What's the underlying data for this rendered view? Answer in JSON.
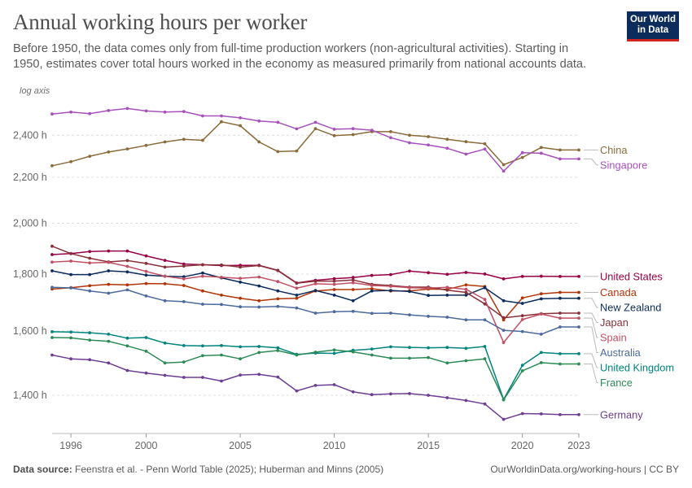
{
  "header": {
    "title": "Annual working hours per worker",
    "subtitle": "Before 1950, the data comes only from full-time production workers (non-agricultural activities). Starting in 1950, estimates cover total hours worked in the economy as measured primarily from national accounts data.",
    "logo_line1": "Our World",
    "logo_line2": "in Data"
  },
  "footer": {
    "source_label": "Data source:",
    "source_text": "Feenstra et al. - Penn World Table (2025); Huberman and Minns (2005)",
    "license": "OurWorldinData.org/working-hours | CC BY"
  },
  "chart_data": {
    "type": "line",
    "title": "Annual working hours per worker",
    "axis_note": "log axis",
    "xlabel": "",
    "ylabel": "",
    "x_ticks": [
      "1996",
      "2000",
      "2005",
      "2010",
      "2015",
      "2020",
      "2023"
    ],
    "y_ticks": [
      "1,400 h",
      "1,600 h",
      "1,800 h",
      "2,000 h",
      "2,200 h",
      "2,400 h"
    ],
    "xlim": [
      1995,
      2023
    ],
    "ylim": [
      1300,
      2560
    ],
    "y_scale": "log",
    "grid": "horizontal dashed",
    "x": [
      1995,
      1996,
      1997,
      1998,
      1999,
      2000,
      2001,
      2002,
      2003,
      2004,
      2005,
      2006,
      2007,
      2008,
      2009,
      2010,
      2011,
      2012,
      2013,
      2014,
      2015,
      2016,
      2017,
      2018,
      2019,
      2020,
      2021,
      2022,
      2023
    ],
    "series": [
      {
        "name": "China",
        "color": "#8a6b3a",
        "values": [
          2253,
          2272,
          2298,
          2318,
          2333,
          2350,
          2367,
          2380,
          2375,
          2468,
          2448,
          2367,
          2320,
          2323,
          2433,
          2398,
          2403,
          2418,
          2418,
          2400,
          2393,
          2380,
          2368,
          2358,
          2258,
          2292,
          2340,
          2328,
          2328
        ]
      },
      {
        "name": "Singapore",
        "color": "#a652ba",
        "values": [
          2508,
          2518,
          2510,
          2526,
          2537,
          2524,
          2518,
          2521,
          2498,
          2498,
          2488,
          2472,
          2465,
          2432,
          2465,
          2430,
          2433,
          2425,
          2388,
          2363,
          2352,
          2336,
          2308,
          2332,
          2228,
          2315,
          2312,
          2285,
          2285
        ]
      },
      {
        "name": "United States",
        "color": "#970046",
        "values": [
          1874,
          1878,
          1886,
          1888,
          1888,
          1869,
          1852,
          1838,
          1835,
          1832,
          1833,
          1833,
          1814,
          1767,
          1777,
          1783,
          1787,
          1795,
          1798,
          1811,
          1805,
          1799,
          1806,
          1800,
          1782,
          1791,
          1792,
          1791,
          1791
        ]
      },
      {
        "name": "Canada",
        "color": "#b13507",
        "values": [
          1745,
          1750,
          1757,
          1762,
          1760,
          1765,
          1764,
          1758,
          1738,
          1723,
          1712,
          1703,
          1710,
          1712,
          1738,
          1743,
          1743,
          1746,
          1738,
          1738,
          1745,
          1744,
          1760,
          1754,
          1637,
          1713,
          1728,
          1733,
          1733
        ]
      },
      {
        "name": "New Zealand",
        "color": "#0c2c5b",
        "values": [
          1812,
          1798,
          1798,
          1812,
          1808,
          1796,
          1792,
          1790,
          1804,
          1786,
          1770,
          1756,
          1738,
          1723,
          1740,
          1723,
          1703,
          1738,
          1740,
          1736,
          1722,
          1723,
          1723,
          1750,
          1703,
          1694,
          1710,
          1712,
          1712
        ]
      },
      {
        "name": "Japan",
        "color": "#883039",
        "values": [
          1907,
          1878,
          1860,
          1846,
          1851,
          1840,
          1826,
          1830,
          1835,
          1834,
          1826,
          1832,
          1813,
          1766,
          1774,
          1774,
          1778,
          1762,
          1758,
          1752,
          1752,
          1741,
          1733,
          1692,
          1644,
          1651,
          1658,
          1660,
          1660
        ]
      },
      {
        "name": "Spain",
        "color": "#c15065",
        "values": [
          1845,
          1849,
          1842,
          1844,
          1829,
          1810,
          1792,
          1782,
          1792,
          1788,
          1784,
          1789,
          1772,
          1748,
          1764,
          1762,
          1768,
          1758,
          1755,
          1750,
          1748,
          1751,
          1744,
          1708,
          1562,
          1638,
          1657,
          1643,
          1643
        ]
      },
      {
        "name": "Australia",
        "color": "#4c6a9c",
        "values": [
          1751,
          1749,
          1738,
          1730,
          1742,
          1720,
          1703,
          1700,
          1691,
          1690,
          1682,
          1681,
          1683,
          1678,
          1660,
          1665,
          1666,
          1659,
          1660,
          1654,
          1649,
          1646,
          1637,
          1637,
          1602,
          1598,
          1589,
          1613,
          1613
        ]
      },
      {
        "name": "United Kingdom",
        "color": "#00847e",
        "values": [
          1597,
          1596,
          1594,
          1589,
          1576,
          1578,
          1560,
          1552,
          1551,
          1552,
          1548,
          1549,
          1545,
          1524,
          1528,
          1527,
          1537,
          1541,
          1548,
          1546,
          1545,
          1546,
          1543,
          1549,
          1388,
          1490,
          1530,
          1526,
          1526
        ]
      },
      {
        "name": "France",
        "color": "#2d8b57",
        "values": [
          1578,
          1577,
          1570,
          1566,
          1551,
          1534,
          1497,
          1500,
          1520,
          1522,
          1510,
          1530,
          1536,
          1522,
          1531,
          1538,
          1532,
          1522,
          1512,
          1512,
          1514,
          1497,
          1504,
          1510,
          1387,
          1473,
          1498,
          1494,
          1494
        ]
      },
      {
        "name": "Germany",
        "color": "#6d3e91",
        "values": [
          1522,
          1510,
          1507,
          1497,
          1474,
          1466,
          1459,
          1453,
          1453,
          1442,
          1460,
          1462,
          1454,
          1413,
          1429,
          1431,
          1410,
          1402,
          1404,
          1405,
          1400,
          1393,
          1385,
          1375,
          1332,
          1348,
          1347,
          1345,
          1345
        ]
      }
    ]
  }
}
